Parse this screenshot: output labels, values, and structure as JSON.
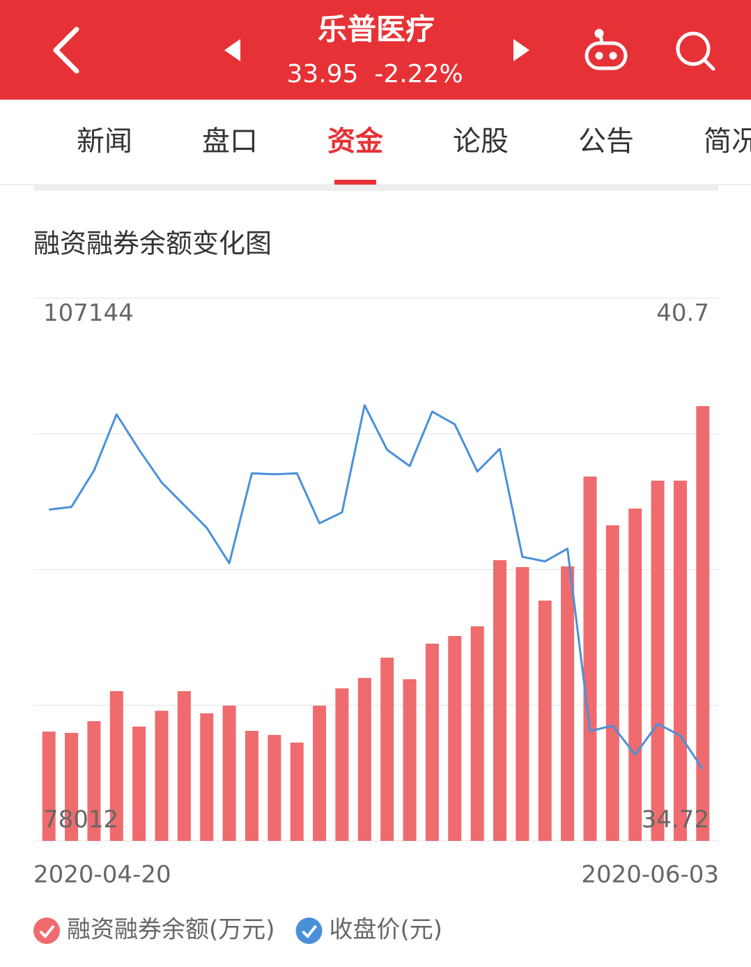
{
  "header": {
    "title": "乐普医疗",
    "price": "33.95",
    "change": "-2.22%"
  },
  "tabs": [
    "新闻",
    "盘口",
    "资金",
    "论股",
    "公告",
    "简况"
  ],
  "active_tab": 2,
  "chart_data": {
    "type": "combo",
    "title": "融资融券余额变化图",
    "categories": [
      "2020-04-20",
      null,
      null,
      null,
      null,
      null,
      null,
      null,
      null,
      null,
      null,
      null,
      null,
      null,
      null,
      null,
      null,
      null,
      null,
      null,
      null,
      null,
      null,
      null,
      null,
      null,
      null,
      null,
      null,
      "2020-06-03"
    ],
    "series": [
      {
        "name": "融资融券余额(万元)",
        "type": "bar",
        "color": "#ef6b6e",
        "values": [
          83880,
          83810,
          84440,
          86050,
          84150,
          85000,
          86050,
          84860,
          85270,
          83920,
          83700,
          83290,
          85270,
          86200,
          86760,
          87850,
          86690,
          88600,
          89010,
          89530,
          93080,
          92710,
          90910,
          92750,
          97570,
          94950,
          95850,
          97350,
          97350,
          101350
        ]
      },
      {
        "name": "收盘价(元)",
        "type": "line",
        "color": "#4a90d9",
        "axis": "y2",
        "values": [
          38.37,
          38.4,
          38.8,
          39.42,
          39.03,
          38.67,
          38.42,
          38.17,
          37.78,
          38.77,
          38.76,
          38.77,
          38.22,
          38.34,
          39.52,
          39.03,
          38.85,
          39.45,
          39.31,
          38.79,
          39.04,
          37.85,
          37.8,
          37.94,
          35.93,
          35.99,
          35.67,
          36.01,
          35.88,
          35.51
        ]
      }
    ],
    "ylim": [
      78012,
      107144
    ],
    "yticks": [
      78012,
      107144
    ],
    "y2lim": [
      34.72,
      40.7
    ],
    "y2ticks": [
      34.72,
      40.7
    ],
    "grid": true
  }
}
